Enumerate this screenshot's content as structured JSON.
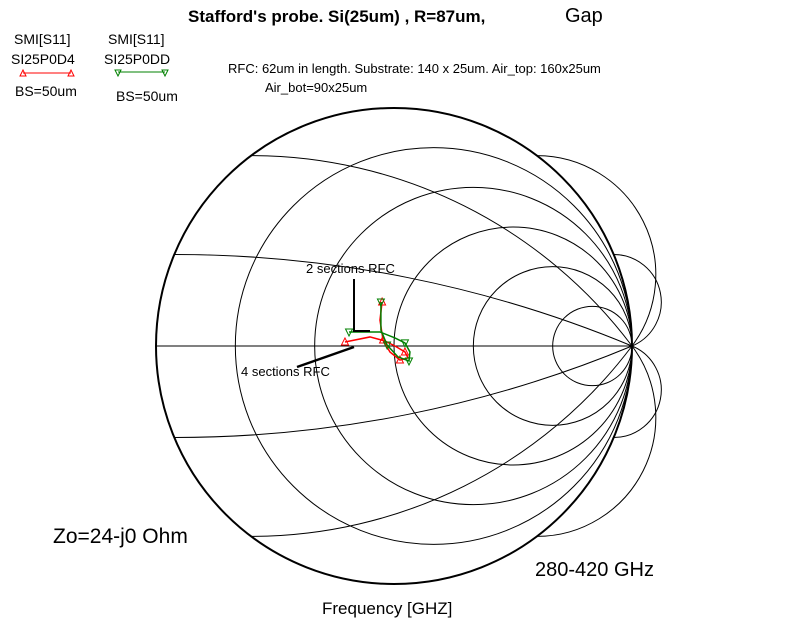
{
  "chart_data": {
    "type": "smith",
    "title": "Stafford's probe. Si(25um) , R=87um,",
    "title_suffix": "Gap",
    "subtitle_line1": "RFC: 62um in length. Substrate: 140 x 25um. Air_top: 160x25um",
    "subtitle_line2": "Air_bot=90x25um",
    "xlabel": "Frequency [GHZ]",
    "impedance_label": "Zo=24-j0 Ohm",
    "frequency_range_label": "280-420 GHz",
    "grid": true,
    "resistance_circles": [
      0.2,
      0.5,
      1,
      2,
      5
    ],
    "reactance_arcs": [
      0.2,
      0.5,
      1,
      2,
      5
    ],
    "legend": [
      {
        "measurement": "SMI[S11]",
        "name": "SI25P0D4",
        "note": "BS=50um",
        "color": "#ff0000",
        "marker": "triangle-up"
      },
      {
        "measurement": "SMI[S11]",
        "name": "SI25P0DD",
        "note": "BS=50um",
        "color": "#008000",
        "marker": "triangle-down"
      }
    ],
    "annotations": [
      {
        "text": "2 sections RFC"
      },
      {
        "text": "4 sections RFC"
      }
    ],
    "series": [
      {
        "name": "SI25P0D4",
        "color": "#ff0000",
        "gamma": [
          [
            -0.206,
            0.017
          ],
          [
            -0.101,
            0.038
          ],
          [
            -0.038,
            0.021
          ],
          [
            0.004,
            0
          ],
          [
            0.046,
            -0.025
          ],
          [
            0.059,
            -0.05
          ],
          [
            0.025,
            -0.059
          ],
          [
            -0.017,
            -0.025
          ],
          [
            -0.046,
            0.025
          ],
          [
            -0.059,
            0.109
          ],
          [
            -0.05,
            0.185
          ]
        ],
        "markers": [
          0,
          4,
          6,
          8,
          10
        ]
      },
      {
        "name": "SI25P0DD",
        "color": "#008000",
        "gamma": [
          [
            -0.189,
            0.059
          ],
          [
            -0.059,
            0.059
          ],
          [
            0.004,
            0.034
          ],
          [
            0.046,
            0.013
          ],
          [
            0.067,
            -0.025
          ],
          [
            0.063,
            -0.063
          ],
          [
            0.017,
            -0.046
          ],
          [
            -0.029,
            0.004
          ],
          [
            -0.055,
            0.067
          ],
          [
            -0.055,
            0.185
          ]
        ],
        "markers": [
          0,
          3,
          5,
          7,
          9
        ]
      }
    ]
  }
}
